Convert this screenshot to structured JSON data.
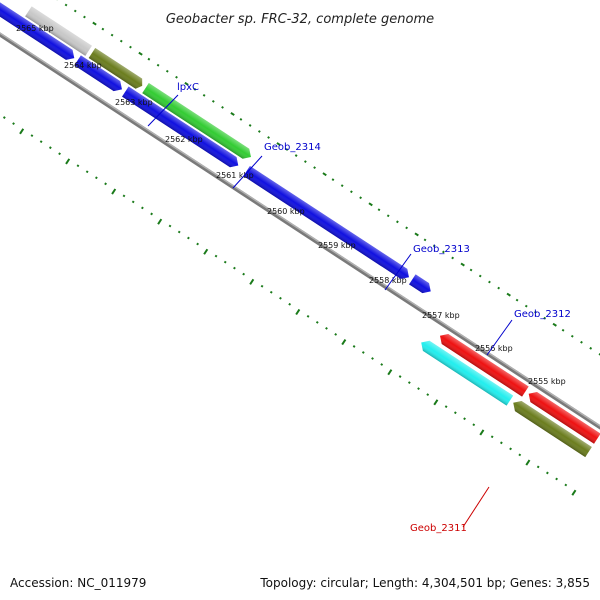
{
  "title": "Geobacter sp. FRC-32, complete genome",
  "footer": {
    "accession": "Accession: NC_011979",
    "summary": "Topology: circular; Length: 4,304,501 bp; Genes: 3,855"
  },
  "colors": {
    "backbone": "#808080",
    "tick": "#1a7a1a",
    "forward_label": "#0000cc",
    "reverse_label": "#cc0000"
  },
  "kbp_ticks": [
    {
      "label": "2565 kbp"
    },
    {
      "label": "2564 kbp"
    },
    {
      "label": "2563 kbp"
    },
    {
      "label": "2562 kbp"
    },
    {
      "label": "2561 kbp"
    },
    {
      "label": "2560 kbp"
    },
    {
      "label": "2559 kbp"
    },
    {
      "label": "2558 kbp"
    },
    {
      "label": "2557 kbp"
    },
    {
      "label": "2556 kbp"
    },
    {
      "label": "2555 kbp"
    }
  ],
  "gene_labels": [
    {
      "text": "lpxC",
      "color": "#0000cc"
    },
    {
      "text": "Geob_2314",
      "color": "#0000cc"
    },
    {
      "text": "Geob_2313",
      "color": "#0000cc"
    },
    {
      "text": "Geob_2312",
      "color": "#0000cc"
    },
    {
      "text": "Geob_2311",
      "color": "#cc0000"
    }
  ]
}
